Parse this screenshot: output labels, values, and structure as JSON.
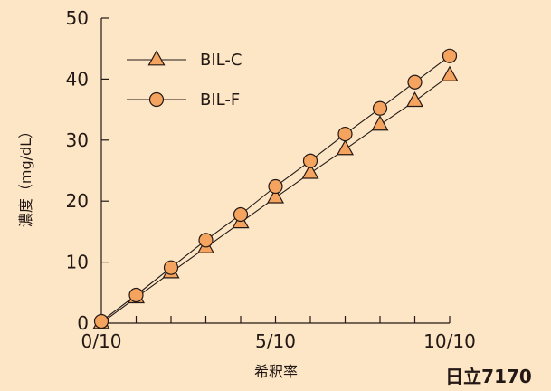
{
  "chart_data": {
    "type": "line",
    "x": [
      0,
      1,
      2,
      3,
      4,
      5,
      6,
      7,
      8,
      9,
      10
    ],
    "xlim": [
      0,
      10
    ],
    "ylim": [
      0,
      50
    ],
    "x_ticks": [
      {
        "value": 0,
        "label": "0/10"
      },
      {
        "value": 5,
        "label": "5/10"
      },
      {
        "value": 10,
        "label": "10/10"
      }
    ],
    "y_ticks": [
      0,
      10,
      20,
      30,
      40,
      50
    ],
    "xlabel": "希釈率",
    "ylabel": "濃度（mg/dL）",
    "legend_position": "top-left",
    "series": [
      {
        "name": "BIL-C",
        "marker": "triangle",
        "values": [
          0,
          4.2,
          8.3,
          12.4,
          16.5,
          20.6,
          24.6,
          28.5,
          32.5,
          36.4,
          40.6
        ]
      },
      {
        "name": "BIL-F",
        "marker": "circle",
        "values": [
          0.3,
          4.6,
          9.1,
          13.6,
          17.8,
          22.4,
          26.6,
          31.0,
          35.2,
          39.5,
          43.8
        ]
      }
    ],
    "colors": {
      "marker_fill": "#F5A45F",
      "line": "#231815",
      "background": "#FCE6C6"
    },
    "footnote": "日立7170"
  }
}
